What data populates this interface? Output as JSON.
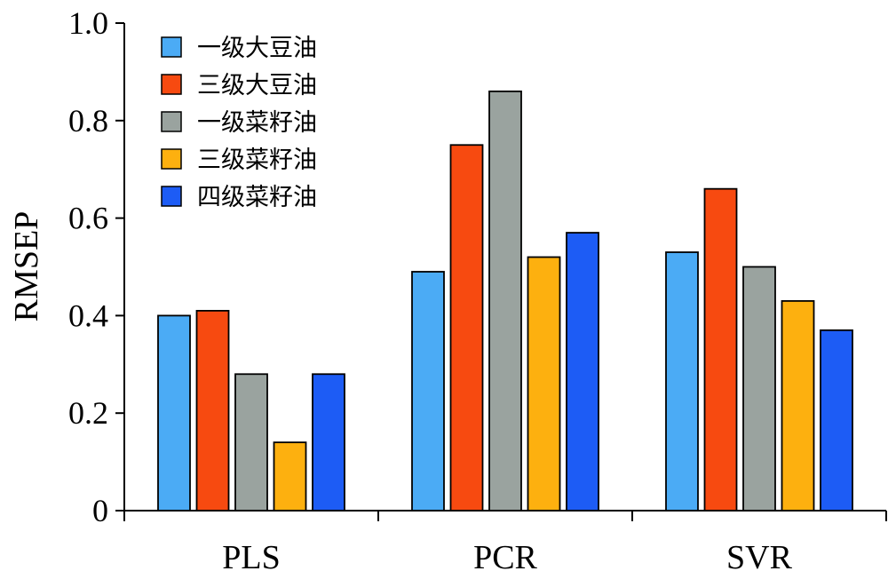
{
  "chart_data": {
    "type": "bar",
    "title": "",
    "xlabel": "",
    "ylabel": "RMSEP",
    "ylim": [
      0,
      1.0
    ],
    "yticks": [
      "0",
      "0.2",
      "0.4",
      "0.6",
      "0.8",
      "1.0"
    ],
    "ytick_values": [
      0,
      0.2,
      0.4,
      0.6,
      0.8,
      1.0
    ],
    "categories": [
      "PLS",
      "PCR",
      "SVR"
    ],
    "legend_position": "top-left",
    "grid": false,
    "series": [
      {
        "name": "一级大豆油",
        "color": "#4BABF5",
        "values": [
          0.4,
          0.49,
          0.53
        ]
      },
      {
        "name": "三级大豆油",
        "color": "#F74A10",
        "values": [
          0.41,
          0.75,
          0.66
        ]
      },
      {
        "name": "一级菜籽油",
        "color": "#9AA39F",
        "values": [
          0.28,
          0.86,
          0.5
        ]
      },
      {
        "name": "三级菜籽油",
        "color": "#FDB00F",
        "values": [
          0.14,
          0.52,
          0.43
        ]
      },
      {
        "name": "四级菜籽油",
        "color": "#1D5CF5",
        "values": [
          0.28,
          0.57,
          0.37
        ]
      }
    ]
  }
}
